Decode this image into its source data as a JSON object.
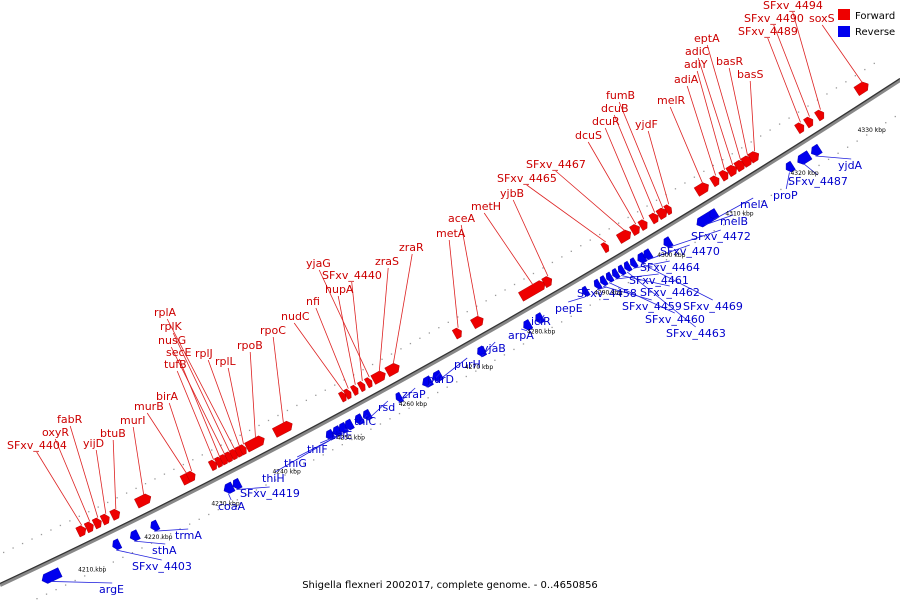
{
  "caption": "Shigella flexneri 2002017, complete genome. - 0..4650856",
  "legend": {
    "forward": {
      "label": "Forward",
      "color": "#ee0000"
    },
    "reverse": {
      "label": "Reverse",
      "color": "#0000ee"
    }
  },
  "scale": {
    "unit": "kbp",
    "labels": [
      "4210 kbp",
      "4220 kbp",
      "4230 kbp",
      "4240 kbp",
      "4250 kbp",
      "4260 kbp",
      "4270 kbp",
      "4280 kbp",
      "4290 kbp",
      "4300 kbp",
      "4310 kbp",
      "4320 kbp",
      "4330 kbp"
    ]
  },
  "forward_genes": [
    "SFxv_4404",
    "oxyR",
    "fabR",
    "yijD",
    "btuB",
    "murI",
    "murB",
    "birA",
    "tufB",
    "secE",
    "nusG",
    "rplK",
    "rplA",
    "rplJ",
    "rplL",
    "rpoB",
    "rpoC",
    "nudC",
    "nfi",
    "hupA",
    "SFxv_4440",
    "yjaG",
    "zraS",
    "zraR",
    "metA",
    "aceA",
    "metH",
    "yjbB",
    "SFxv_4465",
    "SFxv_4467",
    "dcuS",
    "dcuR",
    "dcuB",
    "fumB",
    "yjdF",
    "melR",
    "adiA",
    "adiY",
    "adiC",
    "eptA",
    "basR",
    "basS",
    "SFxv_4489",
    "SFxv_4490",
    "SFxv_4494",
    "soxS"
  ],
  "reverse_genes": [
    "argE",
    "SFxv_4403",
    "sthA",
    "trmA",
    "coaA",
    "SFxv_4419",
    "thiH",
    "thiG",
    "thiF",
    "thiE",
    "thiC",
    "rsd",
    "zraP",
    "purD",
    "purH",
    "yjaB",
    "arpA",
    "iclR",
    "pepE",
    "SFxv_4458",
    "SFxv_4459",
    "SFxv_4460",
    "SFxv_4461",
    "SFxv_4462",
    "SFxv_4463",
    "SFxv_4464",
    "SFxv_4469",
    "SFxv_4470",
    "SFxv_4472",
    "melB",
    "melA",
    "proP",
    "SFxv_4487",
    "yjdA"
  ]
}
